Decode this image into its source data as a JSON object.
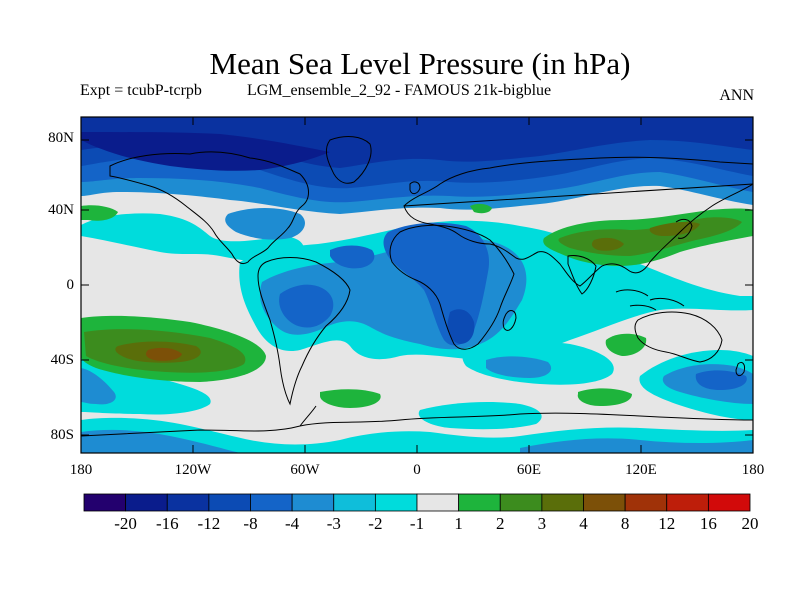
{
  "title": "Mean Sea Level Pressure (in hPa)",
  "subtitle_left": "Expt = tcubP-tcrpb",
  "subtitle_center": "LGM_ensemble_2_92 - FAMOUS 21k-bigblue",
  "subtitle_right": "ANN",
  "lat_labels": [
    "80N",
    "40N",
    "0",
    "40S",
    "80S"
  ],
  "lon_labels": [
    "180",
    "120W",
    "60W",
    "0",
    "60E",
    "120E",
    "180"
  ],
  "colorbar": {
    "labels": [
      "-20",
      "-16",
      "-12",
      "-8",
      "-4",
      "-3",
      "-2",
      "-1",
      "1",
      "2",
      "3",
      "4",
      "8",
      "12",
      "16",
      "20"
    ],
    "colors": [
      "#23006e",
      "#0a1c8c",
      "#0a32a0",
      "#0c4bb4",
      "#1464c8",
      "#1e8cd2",
      "#0fbeda",
      "#00dcdc",
      "#e6e6e6",
      "#1eb43c",
      "#3c8c1e",
      "#5a6e0a",
      "#7c5008",
      "#a03208",
      "#be1e0a",
      "#d20a0a"
    ]
  },
  "colors": {
    "land_outline": "#000000",
    "neutral": "#e6e6e6",
    "deep_negative": "#0a32a0",
    "positive": "#1eb43c"
  }
}
